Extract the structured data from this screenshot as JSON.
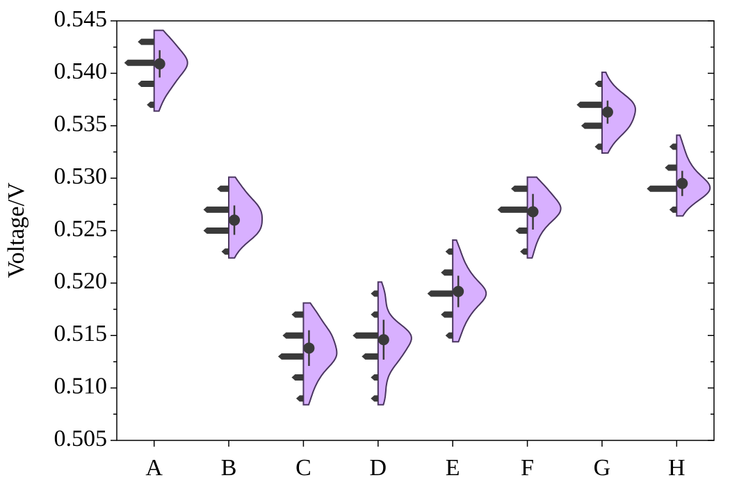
{
  "chart_data": {
    "type": "half-violin",
    "ylabel": "Voltage/V",
    "categories": [
      "A",
      "B",
      "C",
      "D",
      "E",
      "F",
      "G",
      "H"
    ],
    "groups": [
      {
        "values": [
          0.537,
          0.539,
          0.541,
          0.543
        ],
        "counts": [
          1,
          3,
          6,
          3
        ],
        "mean": 0.5409,
        "sd": 0.0013
      },
      {
        "values": [
          0.523,
          0.525,
          0.527,
          0.529
        ],
        "counts": [
          1,
          5,
          5,
          2
        ],
        "mean": 0.526,
        "sd": 0.0014
      },
      {
        "values": [
          0.509,
          0.511,
          0.513,
          0.515,
          0.517
        ],
        "counts": [
          1,
          2,
          5,
          4,
          2
        ],
        "mean": 0.5138,
        "sd": 0.0017
      },
      {
        "values": [
          0.509,
          0.511,
          0.513,
          0.515,
          0.517,
          0.519
        ],
        "counts": [
          1,
          1,
          3,
          5,
          1,
          1
        ],
        "mean": 0.5146,
        "sd": 0.0019
      },
      {
        "values": [
          0.515,
          0.517,
          0.519,
          0.521,
          0.523
        ],
        "counts": [
          1,
          2,
          5,
          2,
          1
        ],
        "mean": 0.5192,
        "sd": 0.0015
      },
      {
        "values": [
          0.523,
          0.525,
          0.527,
          0.529
        ],
        "counts": [
          1,
          2,
          6,
          3
        ],
        "mean": 0.5268,
        "sd": 0.0017
      },
      {
        "values": [
          0.533,
          0.535,
          0.537,
          0.539
        ],
        "counts": [
          1,
          4,
          5,
          1
        ],
        "mean": 0.5363,
        "sd": 0.0011
      },
      {
        "values": [
          0.527,
          0.529,
          0.531,
          0.533
        ],
        "counts": [
          1,
          6,
          2,
          1
        ],
        "mean": 0.5295,
        "sd": 0.0012
      }
    ],
    "violin_color": "#d8b0ff",
    "violin_edge": "#4a3560",
    "dot_color": "#3a3a3a",
    "ylim": [
      0.505,
      0.545
    ],
    "yticks": [
      0.505,
      {
        "value": 0.51,
        "label": "0.510"
      },
      0.515,
      {
        "value": 0.52,
        "label": "0.520"
      },
      0.525,
      {
        "value": 0.53,
        "label": "0.530"
      },
      0.535,
      {
        "value": 0.54,
        "label": "0.540"
      },
      0.545
    ]
  }
}
